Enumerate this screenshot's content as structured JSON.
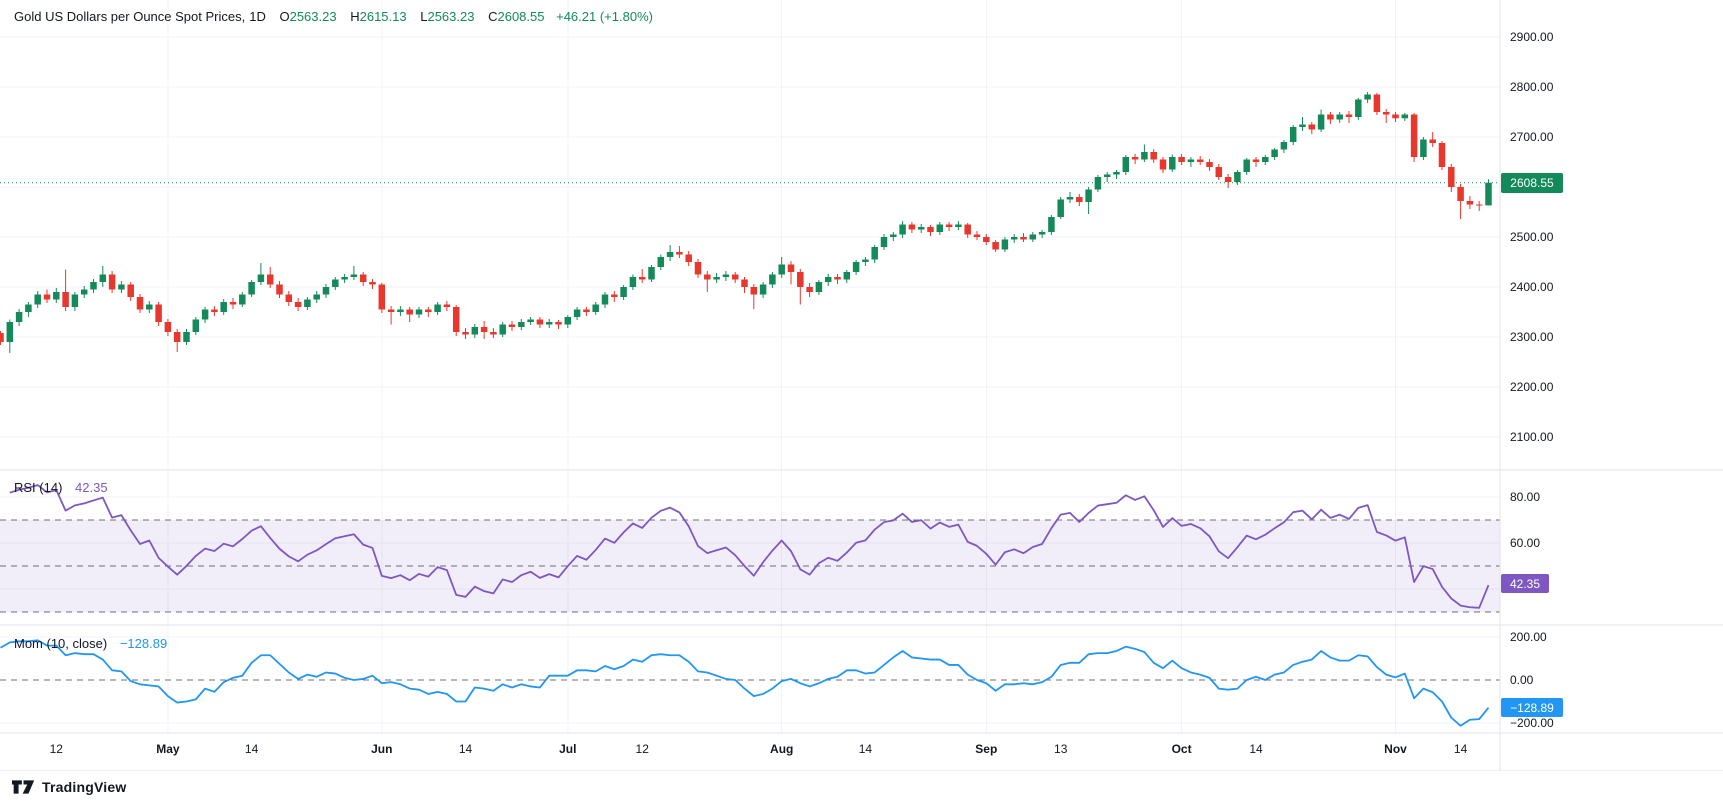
{
  "colors": {
    "up": "#148a5a",
    "down": "#e8372c",
    "rsi": "#7e57c2",
    "momentum": "#2196f3",
    "grid": "#f0f3fa",
    "separator": "#e0e3eb",
    "dashed": "#6b6f78",
    "text": "#131722",
    "band_fill": "rgba(126,87,194,0.1)"
  },
  "header": {
    "title": "Gold US Dollars per Ounce Spot Prices,",
    "interval": "1D",
    "open_label": "O",
    "open": "2563.23",
    "high_label": "H",
    "high": "2615.13",
    "low_label": "L",
    "low": "2563.23",
    "close_label": "C",
    "close": "2608.55",
    "change": "+46.21 (+1.80%)"
  },
  "price_pane": {
    "ticks": [
      "2900.00",
      "2800.00",
      "2700.00",
      "2600.00",
      "2500.00",
      "2400.00",
      "2300.00",
      "2200.00",
      "2100.00"
    ],
    "last_price_badge": "2608.55"
  },
  "rsi_pane": {
    "label": "RSI (14)",
    "value": "42.35",
    "badge": "42.35",
    "ticks": [
      "80.00",
      "60.00",
      "40.00"
    ]
  },
  "mom_pane": {
    "label": "Mom (10, close)",
    "value": "−128.89",
    "badge": "−128.89",
    "ticks": [
      "200.00",
      "0.00",
      "−200.00"
    ]
  },
  "time_axis": {
    "labels": [
      {
        "text": "12",
        "index": 6,
        "month": false
      },
      {
        "text": "May",
        "index": 18,
        "month": true
      },
      {
        "text": "14",
        "index": 27,
        "month": false
      },
      {
        "text": "Jun",
        "index": 41,
        "month": true
      },
      {
        "text": "14",
        "index": 50,
        "month": false
      },
      {
        "text": "Jul",
        "index": 61,
        "month": true
      },
      {
        "text": "12",
        "index": 69,
        "month": false
      },
      {
        "text": "Aug",
        "index": 84,
        "month": true
      },
      {
        "text": "14",
        "index": 93,
        "month": false
      },
      {
        "text": "Sep",
        "index": 106,
        "month": true
      },
      {
        "text": "13",
        "index": 114,
        "month": false
      },
      {
        "text": "Oct",
        "index": 127,
        "month": true
      },
      {
        "text": "14",
        "index": 135,
        "month": false
      },
      {
        "text": "Nov",
        "index": 150,
        "month": true
      },
      {
        "text": "14",
        "index": 157,
        "month": false
      }
    ]
  },
  "footer": {
    "brand": "TradingView"
  },
  "chart_data": {
    "type": "candlestick",
    "title": "Gold US Dollars per Ounce Spot Prices",
    "interval": "1D",
    "last_price": 2608.55,
    "last_ohlc": {
      "open": 2563.23,
      "high": 2615.13,
      "low": 2563.23,
      "close": 2608.55,
      "change": 46.21,
      "change_pct": 1.8
    },
    "price_axis_range_visible": [
      2034,
      2924
    ],
    "price_axis_ticks": [
      2900,
      2800,
      2700,
      2600,
      2500,
      2400,
      2300,
      2200,
      2100
    ],
    "month_start_indices": [
      18,
      41,
      61,
      84,
      106,
      127,
      150
    ],
    "indicators": {
      "rsi": {
        "name": "RSI",
        "period": 14,
        "last": 42.35,
        "levels": [
          70,
          50,
          30
        ],
        "axis_ticks": [
          80,
          60,
          40
        ]
      },
      "momentum": {
        "name": "Mom",
        "period": 10,
        "source": "close",
        "last": -128.89,
        "axis_ticks": [
          200,
          0,
          -200
        ]
      }
    },
    "candles": [
      [
        2308,
        2312,
        2284,
        2290
      ],
      [
        2290,
        2335,
        2268,
        2330
      ],
      [
        2330,
        2356,
        2322,
        2350
      ],
      [
        2350,
        2370,
        2340,
        2365
      ],
      [
        2365,
        2392,
        2358,
        2385
      ],
      [
        2385,
        2395,
        2368,
        2375
      ],
      [
        2375,
        2398,
        2368,
        2390
      ],
      [
        2390,
        2435,
        2352,
        2360
      ],
      [
        2360,
        2390,
        2352,
        2385
      ],
      [
        2385,
        2402,
        2378,
        2395
      ],
      [
        2395,
        2416,
        2388,
        2410
      ],
      [
        2410,
        2442,
        2400,
        2425
      ],
      [
        2425,
        2432,
        2388,
        2395
      ],
      [
        2395,
        2412,
        2388,
        2405
      ],
      [
        2405,
        2410,
        2372,
        2380
      ],
      [
        2380,
        2386,
        2348,
        2355
      ],
      [
        2355,
        2372,
        2348,
        2365
      ],
      [
        2365,
        2370,
        2322,
        2330
      ],
      [
        2330,
        2336,
        2302,
        2310
      ],
      [
        2310,
        2316,
        2270,
        2290
      ],
      [
        2290,
        2316,
        2284,
        2310
      ],
      [
        2310,
        2340,
        2304,
        2335
      ],
      [
        2335,
        2360,
        2328,
        2355
      ],
      [
        2355,
        2362,
        2342,
        2350
      ],
      [
        2350,
        2376,
        2344,
        2370
      ],
      [
        2370,
        2378,
        2356,
        2365
      ],
      [
        2365,
        2390,
        2360,
        2385
      ],
      [
        2385,
        2414,
        2380,
        2410
      ],
      [
        2410,
        2448,
        2404,
        2425
      ],
      [
        2425,
        2440,
        2398,
        2405
      ],
      [
        2405,
        2412,
        2378,
        2385
      ],
      [
        2385,
        2392,
        2362,
        2370
      ],
      [
        2370,
        2378,
        2352,
        2360
      ],
      [
        2360,
        2380,
        2354,
        2375
      ],
      [
        2375,
        2392,
        2368,
        2385
      ],
      [
        2385,
        2406,
        2378,
        2400
      ],
      [
        2400,
        2420,
        2394,
        2415
      ],
      [
        2415,
        2426,
        2408,
        2420
      ],
      [
        2420,
        2442,
        2414,
        2425
      ],
      [
        2425,
        2430,
        2402,
        2410
      ],
      [
        2410,
        2416,
        2396,
        2405
      ],
      [
        2405,
        2408,
        2348,
        2355
      ],
      [
        2355,
        2362,
        2325,
        2350
      ],
      [
        2350,
        2362,
        2342,
        2355
      ],
      [
        2355,
        2360,
        2330,
        2345
      ],
      [
        2345,
        2360,
        2338,
        2355
      ],
      [
        2355,
        2360,
        2340,
        2350
      ],
      [
        2350,
        2370,
        2344,
        2365
      ],
      [
        2365,
        2372,
        2352,
        2360
      ],
      [
        2360,
        2364,
        2302,
        2310
      ],
      [
        2310,
        2318,
        2296,
        2305
      ],
      [
        2305,
        2326,
        2298,
        2320
      ],
      [
        2320,
        2332,
        2296,
        2310
      ],
      [
        2310,
        2318,
        2298,
        2305
      ],
      [
        2305,
        2330,
        2300,
        2325
      ],
      [
        2325,
        2332,
        2312,
        2320
      ],
      [
        2320,
        2336,
        2314,
        2330
      ],
      [
        2330,
        2340,
        2324,
        2335
      ],
      [
        2335,
        2340,
        2318,
        2325
      ],
      [
        2325,
        2336,
        2318,
        2330
      ],
      [
        2330,
        2334,
        2316,
        2325
      ],
      [
        2325,
        2344,
        2318,
        2340
      ],
      [
        2340,
        2360,
        2334,
        2355
      ],
      [
        2355,
        2360,
        2342,
        2350
      ],
      [
        2350,
        2370,
        2344,
        2365
      ],
      [
        2365,
        2390,
        2358,
        2385
      ],
      [
        2385,
        2392,
        2370,
        2380
      ],
      [
        2380,
        2404,
        2374,
        2400
      ],
      [
        2400,
        2425,
        2394,
        2420
      ],
      [
        2420,
        2436,
        2408,
        2415
      ],
      [
        2415,
        2444,
        2410,
        2440
      ],
      [
        2440,
        2465,
        2434,
        2460
      ],
      [
        2460,
        2484,
        2452,
        2470
      ],
      [
        2470,
        2482,
        2458,
        2465
      ],
      [
        2465,
        2472,
        2442,
        2450
      ],
      [
        2450,
        2456,
        2418,
        2425
      ],
      [
        2425,
        2432,
        2390,
        2415
      ],
      [
        2415,
        2428,
        2408,
        2420
      ],
      [
        2420,
        2432,
        2412,
        2425
      ],
      [
        2425,
        2430,
        2408,
        2415
      ],
      [
        2415,
        2420,
        2388,
        2400
      ],
      [
        2400,
        2406,
        2356,
        2385
      ],
      [
        2385,
        2410,
        2378,
        2405
      ],
      [
        2405,
        2430,
        2398,
        2425
      ],
      [
        2425,
        2460,
        2418,
        2445
      ],
      [
        2445,
        2452,
        2405,
        2430
      ],
      [
        2430,
        2436,
        2365,
        2400
      ],
      [
        2400,
        2408,
        2380,
        2390
      ],
      [
        2390,
        2414,
        2384,
        2410
      ],
      [
        2410,
        2426,
        2402,
        2420
      ],
      [
        2420,
        2426,
        2406,
        2415
      ],
      [
        2415,
        2434,
        2408,
        2430
      ],
      [
        2430,
        2454,
        2424,
        2450
      ],
      [
        2450,
        2460,
        2442,
        2455
      ],
      [
        2455,
        2484,
        2448,
        2480
      ],
      [
        2480,
        2506,
        2474,
        2500
      ],
      [
        2500,
        2510,
        2492,
        2505
      ],
      [
        2505,
        2532,
        2498,
        2525
      ],
      [
        2525,
        2530,
        2508,
        2515
      ],
      [
        2515,
        2526,
        2508,
        2520
      ],
      [
        2520,
        2524,
        2502,
        2510
      ],
      [
        2510,
        2530,
        2504,
        2525
      ],
      [
        2525,
        2530,
        2512,
        2520
      ],
      [
        2520,
        2532,
        2514,
        2525
      ],
      [
        2525,
        2528,
        2498,
        2505
      ],
      [
        2505,
        2512,
        2494,
        2500
      ],
      [
        2500,
        2506,
        2484,
        2490
      ],
      [
        2490,
        2494,
        2470,
        2475
      ],
      [
        2475,
        2500,
        2470,
        2495
      ],
      [
        2495,
        2506,
        2488,
        2500
      ],
      [
        2500,
        2508,
        2490,
        2495
      ],
      [
        2495,
        2510,
        2490,
        2505
      ],
      [
        2505,
        2514,
        2498,
        2510
      ],
      [
        2510,
        2544,
        2504,
        2540
      ],
      [
        2540,
        2580,
        2536,
        2575
      ],
      [
        2575,
        2590,
        2568,
        2580
      ],
      [
        2580,
        2586,
        2562,
        2570
      ],
      [
        2570,
        2600,
        2546,
        2595
      ],
      [
        2595,
        2624,
        2590,
        2620
      ],
      [
        2620,
        2630,
        2610,
        2625
      ],
      [
        2625,
        2634,
        2616,
        2630
      ],
      [
        2630,
        2664,
        2624,
        2660
      ],
      [
        2660,
        2666,
        2646,
        2655
      ],
      [
        2655,
        2685,
        2650,
        2670
      ],
      [
        2670,
        2676,
        2648,
        2655
      ],
      [
        2655,
        2660,
        2628,
        2635
      ],
      [
        2635,
        2665,
        2630,
        2660
      ],
      [
        2660,
        2666,
        2644,
        2650
      ],
      [
        2650,
        2660,
        2640,
        2655
      ],
      [
        2655,
        2662,
        2644,
        2650
      ],
      [
        2650,
        2656,
        2632,
        2640
      ],
      [
        2640,
        2646,
        2614,
        2620
      ],
      [
        2620,
        2626,
        2598,
        2610
      ],
      [
        2610,
        2634,
        2604,
        2630
      ],
      [
        2630,
        2658,
        2624,
        2655
      ],
      [
        2655,
        2660,
        2640,
        2650
      ],
      [
        2650,
        2664,
        2644,
        2660
      ],
      [
        2660,
        2678,
        2654,
        2675
      ],
      [
        2675,
        2694,
        2668,
        2690
      ],
      [
        2690,
        2724,
        2684,
        2720
      ],
      [
        2720,
        2740,
        2712,
        2725
      ],
      [
        2725,
        2730,
        2706,
        2715
      ],
      [
        2715,
        2755,
        2710,
        2745
      ],
      [
        2745,
        2750,
        2726,
        2735
      ],
      [
        2735,
        2750,
        2728,
        2745
      ],
      [
        2745,
        2752,
        2728,
        2740
      ],
      [
        2740,
        2778,
        2734,
        2775
      ],
      [
        2775,
        2790,
        2768,
        2785
      ],
      [
        2785,
        2788,
        2744,
        2750
      ],
      [
        2750,
        2756,
        2728,
        2745
      ],
      [
        2745,
        2750,
        2730,
        2737.44
      ],
      [
        2737.44,
        2748,
        2732,
        2745
      ],
      [
        2745,
        2748,
        2650,
        2660
      ],
      [
        2660,
        2700,
        2654,
        2695
      ],
      [
        2695,
        2710,
        2680,
        2688
      ],
      [
        2688,
        2692,
        2634,
        2640
      ],
      [
        2640,
        2646,
        2590,
        2600
      ],
      [
        2600,
        2606,
        2536,
        2572
      ],
      [
        2572,
        2582,
        2556,
        2565
      ],
      [
        2565,
        2572,
        2552,
        2563
      ],
      [
        2563.23,
        2615.13,
        2563.23,
        2608.55
      ]
    ]
  }
}
